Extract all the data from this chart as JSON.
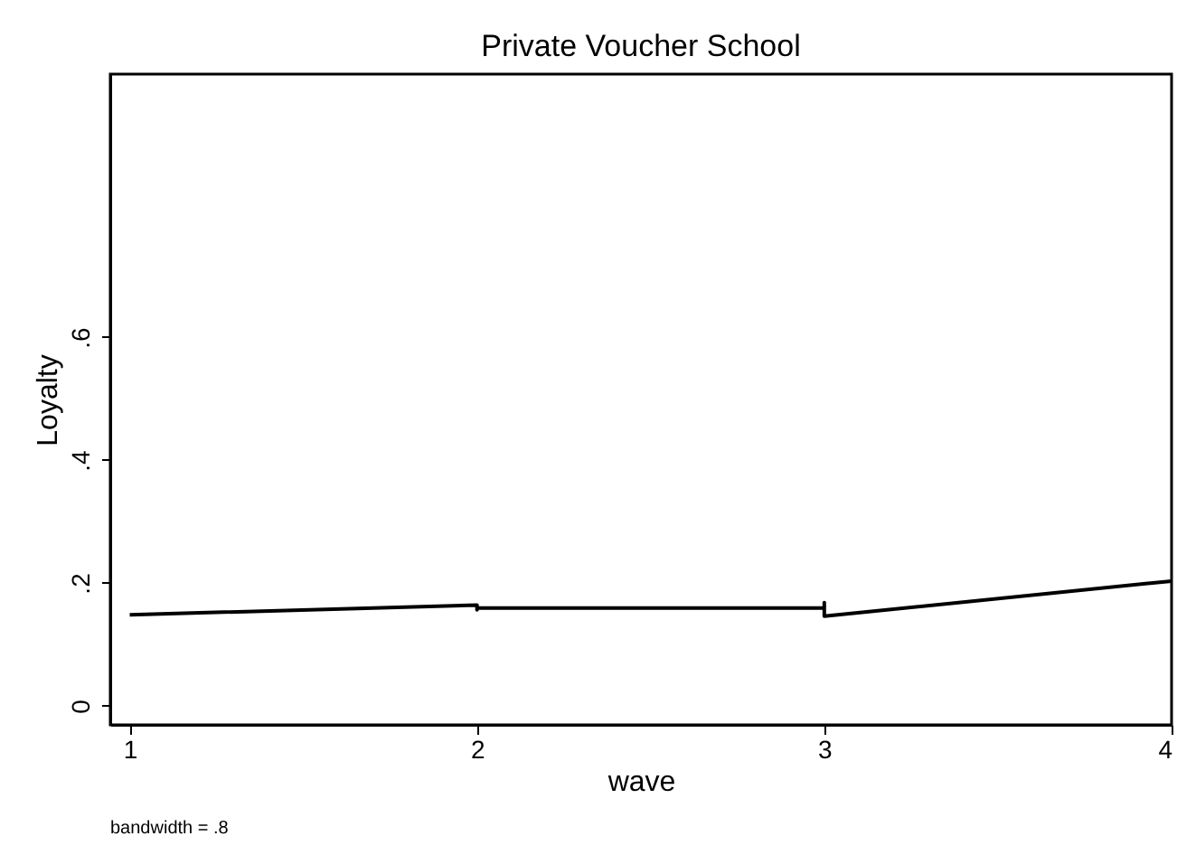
{
  "chart_data": {
    "type": "line",
    "title": "Private Voucher School",
    "xlabel": "wave",
    "ylabel": "Loyalty",
    "annotations": [
      "bandwidth = .8"
    ],
    "x": [
      1,
      2,
      2,
      2,
      3,
      3,
      3,
      4
    ],
    "series": [
      {
        "color": "#000000",
        "values": [
          0.148,
          0.164,
          0.156,
          0.159,
          0.159,
          0.168,
          0.146,
          0.203
        ]
      }
    ],
    "xlim": [
      0.944,
      4.0
    ],
    "xticks": [
      1,
      2,
      3,
      4
    ],
    "ylim": [
      -0.031,
      1.028
    ],
    "yticks": [
      0,
      {
        "value": 0.2,
        "label": ".2"
      },
      {
        "value": 0.4,
        "label": ".4"
      },
      {
        "value": 0.6,
        "label": ".6"
      }
    ],
    "grid": false,
    "marker": "none",
    "line_style": "solid"
  }
}
